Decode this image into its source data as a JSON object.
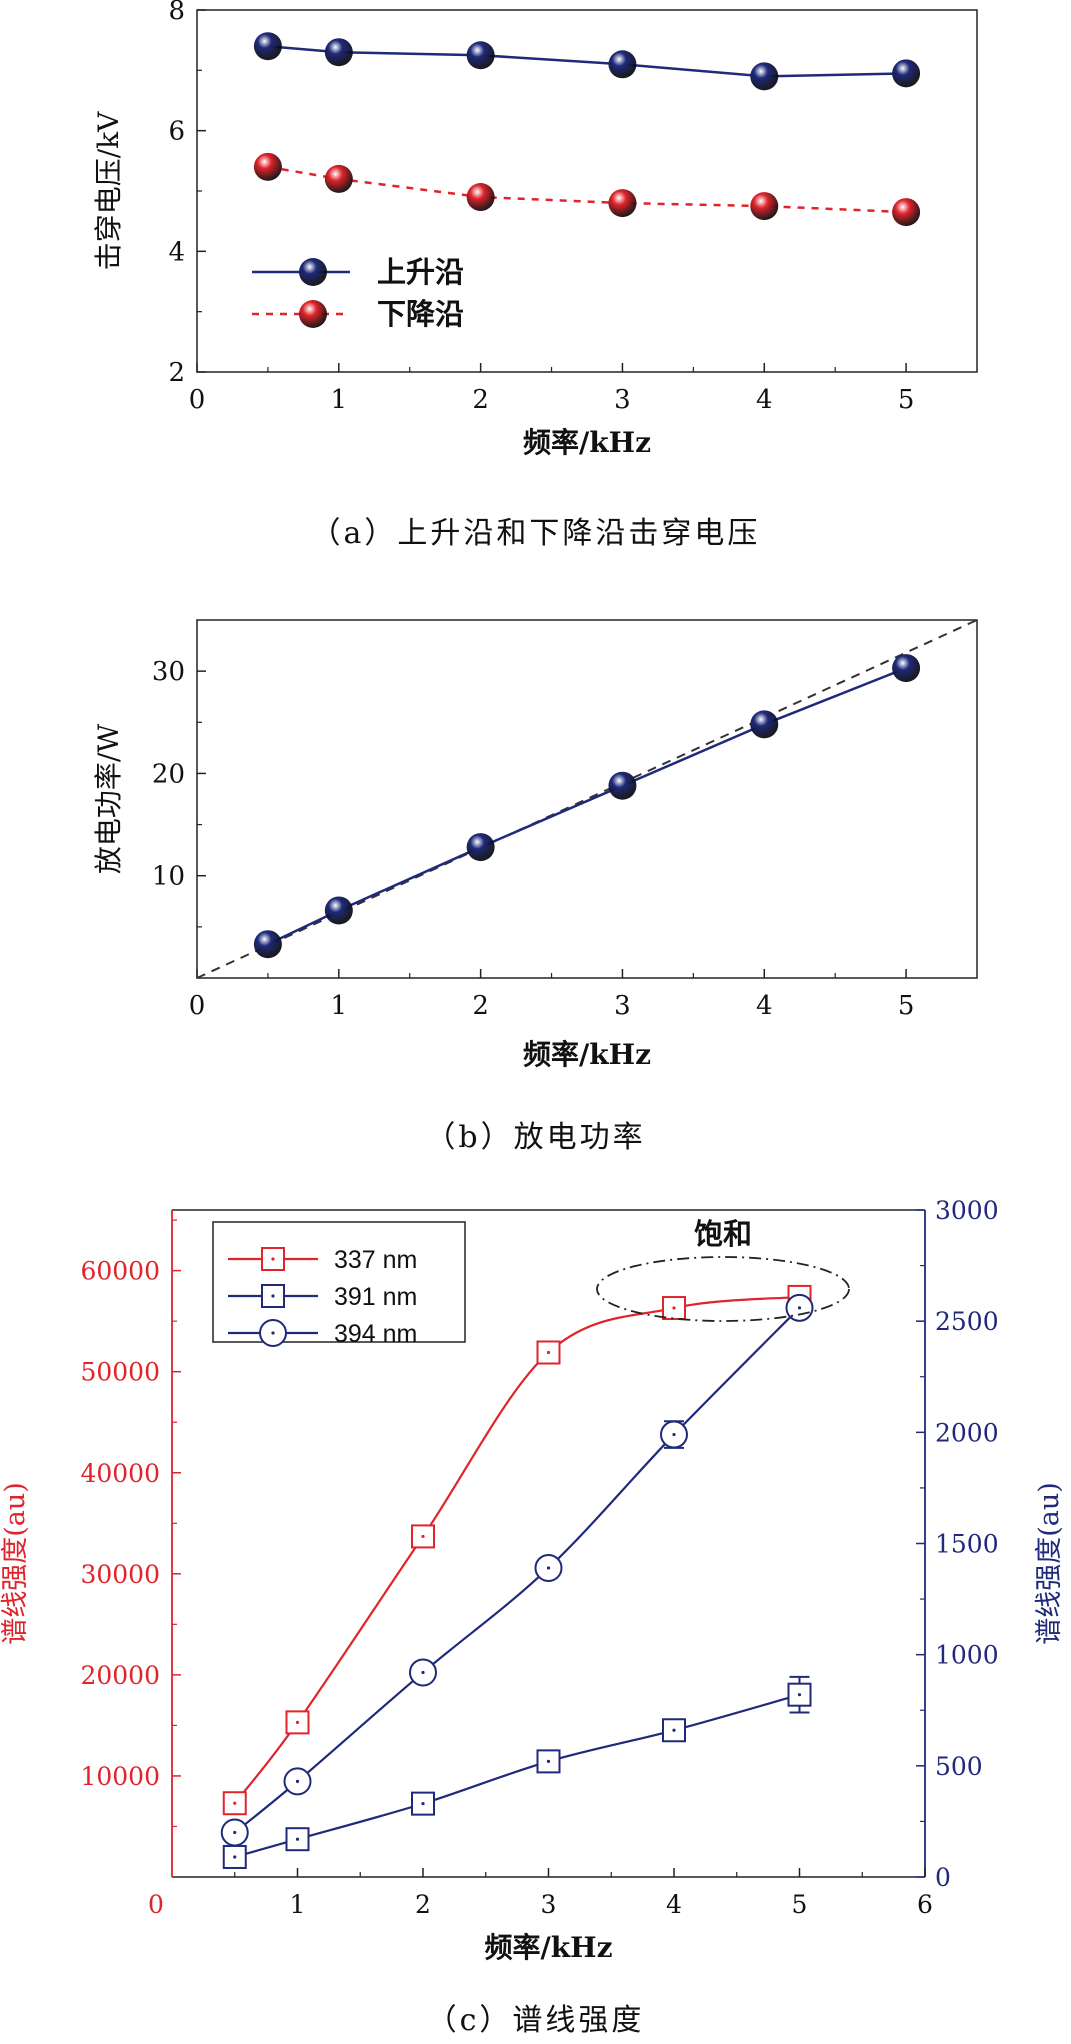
{
  "figure": {
    "captions": {
      "a": "（a）上升沿和下降沿击穿电压",
      "b": "（b）放电功率",
      "c": "（c）谱线强度"
    }
  },
  "chart_data": [
    {
      "id": "a",
      "type": "line",
      "xlabel": "频率/kHz",
      "ylabel": "击穿电压/kV",
      "xlim": [
        0,
        5.5
      ],
      "ylim": [
        2,
        8
      ],
      "xticks": [
        0,
        1,
        2,
        3,
        4,
        5
      ],
      "yticks": [
        2,
        4,
        6,
        8
      ],
      "legend_position": "left",
      "series": [
        {
          "name": "上升沿",
          "color": "#1f2a7a",
          "line": "solid",
          "x": [
            0.5,
            1,
            2,
            3,
            4,
            5
          ],
          "y": [
            7.4,
            7.3,
            7.25,
            7.1,
            6.9,
            6.95
          ]
        },
        {
          "name": "下降沿",
          "color": "#e0242b",
          "line": "dashed",
          "x": [
            0.5,
            1,
            2,
            3,
            4,
            5
          ],
          "y": [
            5.4,
            5.2,
            4.9,
            4.8,
            4.75,
            4.65
          ]
        }
      ]
    },
    {
      "id": "b",
      "type": "line",
      "xlabel": "频率/kHz",
      "ylabel": "放电功率/W",
      "xlim": [
        0,
        5.5
      ],
      "ylim": [
        0,
        35
      ],
      "xticks": [
        0,
        1,
        2,
        3,
        4,
        5
      ],
      "yticks": [
        10,
        20,
        30
      ],
      "reference_line": {
        "x": [
          0,
          5.5
        ],
        "y": [
          0,
          35
        ],
        "color": "#333333",
        "line": "dashed"
      },
      "series": [
        {
          "color": "#1f2a7a",
          "line": "solid",
          "x": [
            0.5,
            1,
            2,
            3,
            4,
            5
          ],
          "y": [
            3.3,
            6.6,
            12.8,
            18.8,
            24.8,
            30.3
          ]
        }
      ]
    },
    {
      "id": "c",
      "type": "line",
      "xlabel": "频率/kHz",
      "ylabel_left": "谱线强度(au)",
      "ylabel_right": "谱线强度(au)",
      "xlim": [
        0,
        6
      ],
      "ylim_left": [
        0,
        66000
      ],
      "ylim_right": [
        0,
        3000
      ],
      "xticks": [
        1,
        2,
        3,
        4,
        5,
        6
      ],
      "xtick_zero_left": "0",
      "yticks_left": [
        10000,
        20000,
        30000,
        40000,
        50000,
        60000
      ],
      "yticks_right": [
        0,
        500,
        1000,
        1500,
        2000,
        2500,
        3000
      ],
      "left_axis_color": "#e0242b",
      "right_axis_color": "#1f2a7a",
      "legend_position": "top-left",
      "annotation": "饱和",
      "series": [
        {
          "name": "337 nm",
          "axis": "left",
          "color": "#e0242b",
          "marker": "square",
          "x": [
            0.5,
            1,
            2,
            3,
            4,
            5
          ],
          "y": [
            7300,
            15300,
            33700,
            51900,
            56300,
            57400
          ],
          "err": [
            0,
            0,
            0,
            0,
            0,
            0
          ]
        },
        {
          "name": "391 nm",
          "axis": "right",
          "color": "#1f2a7a",
          "marker": "square",
          "x": [
            0.5,
            1,
            2,
            3,
            4,
            5
          ],
          "y": [
            90,
            170,
            330,
            520,
            660,
            820
          ],
          "err": [
            0,
            0,
            0,
            0,
            0,
            80
          ]
        },
        {
          "name": "394 nm",
          "axis": "right",
          "color": "#1f2a7a",
          "marker": "circle-dot",
          "x": [
            0.5,
            1,
            2,
            3,
            4,
            5
          ],
          "y": [
            200,
            430,
            920,
            1390,
            1990,
            2560
          ],
          "err": [
            0,
            0,
            0,
            0,
            60,
            0
          ]
        }
      ]
    }
  ]
}
